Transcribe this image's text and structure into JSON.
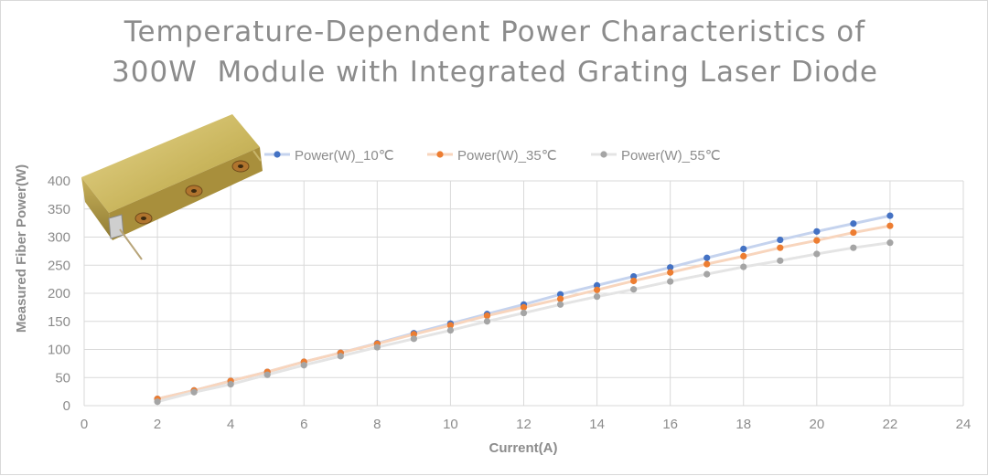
{
  "chart_data": {
    "type": "line",
    "title_lines": [
      "Temperature-Dependent Power Characteristics of",
      "300W  Module with Integrated Grating Laser Diode"
    ],
    "xlabel": "Current(A)",
    "ylabel": "Measured Fiber Power(W)",
    "xlim": [
      0,
      24
    ],
    "ylim": [
      0,
      400
    ],
    "x_ticks": [
      0,
      2,
      4,
      6,
      8,
      10,
      12,
      14,
      16,
      18,
      20,
      22,
      24
    ],
    "y_ticks": [
      0,
      50,
      100,
      150,
      200,
      250,
      300,
      350,
      400
    ],
    "grid": "vertical-and-horizontal",
    "legend_position": "top",
    "x": [
      2,
      3,
      4,
      5,
      6,
      7,
      8,
      9,
      10,
      11,
      12,
      13,
      14,
      15,
      16,
      17,
      18,
      19,
      20,
      21,
      22
    ],
    "series": [
      {
        "name": "Power(W)_10℃",
        "color": "#4472c4",
        "line_color": "#c5d3ee",
        "values": [
          12,
          27,
          44,
          60,
          78,
          94,
          111,
          129,
          146,
          163,
          180,
          198,
          214,
          230,
          246,
          263,
          279,
          295,
          310,
          324,
          338
        ]
      },
      {
        "name": "Power(W)_35℃",
        "color": "#ed7d31",
        "line_color": "#f8d5bd",
        "values": [
          12,
          27,
          44,
          60,
          78,
          94,
          110,
          127,
          143,
          160,
          175,
          190,
          206,
          222,
          237,
          252,
          266,
          281,
          294,
          308,
          320
        ]
      },
      {
        "name": "Power(W)_55℃",
        "color": "#a5a5a5",
        "line_color": "#e4e4e4",
        "values": [
          7,
          24,
          38,
          55,
          72,
          88,
          104,
          119,
          134,
          150,
          165,
          180,
          194,
          207,
          221,
          234,
          247,
          258,
          270,
          281,
          290
        ]
      }
    ]
  },
  "product_image": {
    "icon": "laser-module-product-photo",
    "body_color": "#c8b25a"
  }
}
